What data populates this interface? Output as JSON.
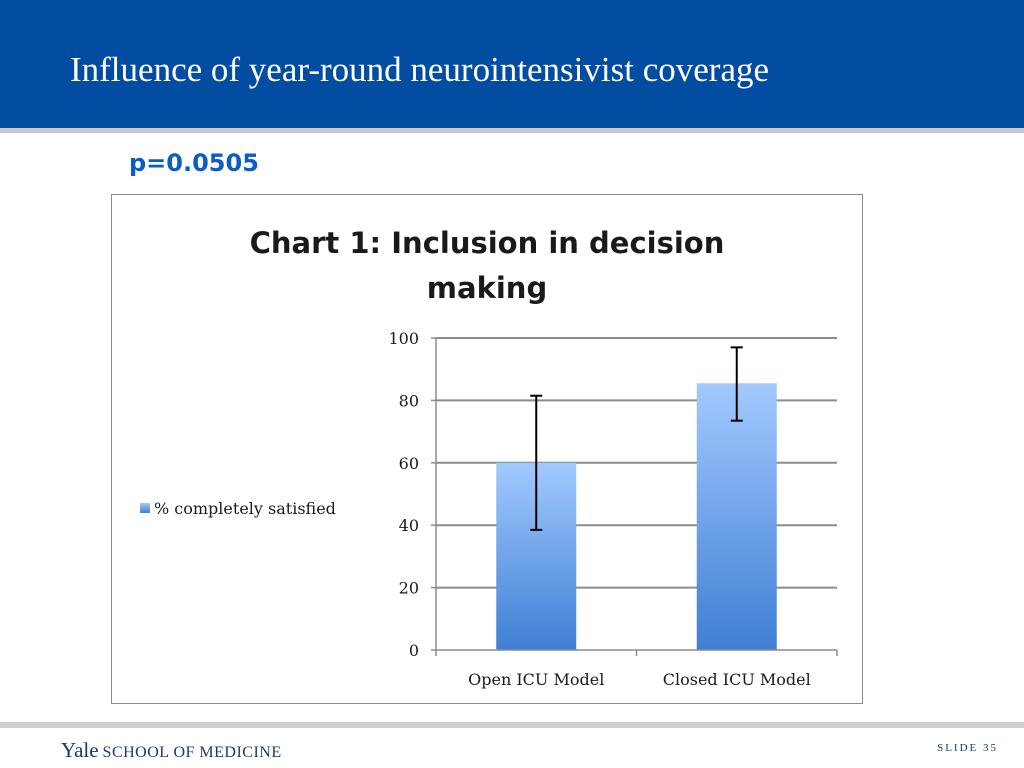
{
  "slide": {
    "title": "Influence of year-round neurointensivist coverage",
    "annotation": "p=0.0505",
    "footer_logo_main": "Yale",
    "footer_logo_sub": "SCHOOL OF MEDICINE",
    "slide_number": "SLIDE 35"
  },
  "colors": {
    "header": "#024da1",
    "bar_top": "#a3c9ff",
    "bar_bottom": "#3f7fd4",
    "annotation": "#0b5cc4"
  },
  "chart_data": {
    "type": "bar",
    "title": "Chart 1: Inclusion in decision making",
    "title_lines": [
      "Chart 1: Inclusion in decision",
      "making"
    ],
    "categories": [
      "Open ICU Model",
      "Closed ICU Model"
    ],
    "series": [
      {
        "name": "% completely satisfied",
        "values": [
          60,
          85.5
        ],
        "error_low": [
          38.5,
          73.5
        ],
        "error_high": [
          81.5,
          97
        ]
      }
    ],
    "ylim": [
      0,
      100
    ],
    "yticks": [
      0,
      20,
      40,
      60,
      80,
      100
    ],
    "grid": true,
    "legend": "left"
  }
}
